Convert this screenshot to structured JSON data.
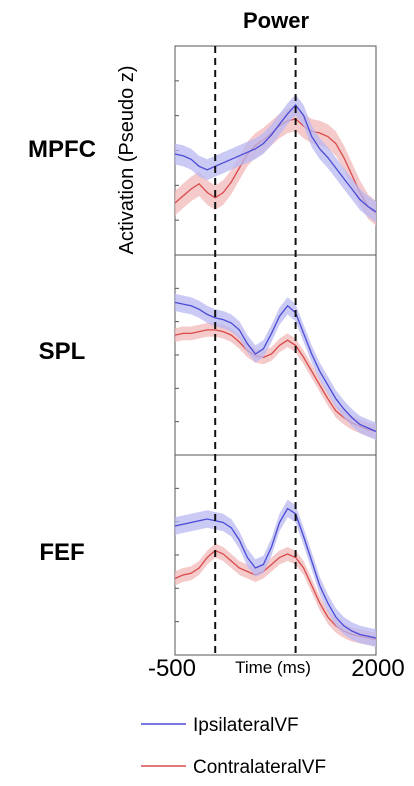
{
  "chart_data": {
    "type": "line",
    "title": "Power",
    "ylabel": "Activation (Pseudo z)",
    "xlabel": "Time (ms)",
    "x_tick_labels": [
      "-500",
      "2000"
    ],
    "xlim": [
      -500,
      2000
    ],
    "vlines": [
      0,
      1000
    ],
    "legend": {
      "placement": "bottom",
      "entries": [
        {
          "name": "IpsilateralVF",
          "color": "#4b4bd6"
        },
        {
          "name": "ContralateralVF",
          "color": "#d94b4b"
        }
      ]
    },
    "band_colors": {
      "IpsilateralVF": "#b8b8f2",
      "ContralateralVF": "#f2b8b8"
    },
    "x": [
      -500,
      -400,
      -300,
      -200,
      -100,
      0,
      100,
      200,
      300,
      400,
      500,
      600,
      700,
      800,
      900,
      1000,
      1100,
      1200,
      1300,
      1400,
      1500,
      1600,
      1700,
      1800,
      1900,
      2000
    ],
    "panels": [
      {
        "label": "MPFC",
        "ylim": [
          0,
          1
        ],
        "series": [
          {
            "name": "IpsilateralVF",
            "values": [
              0.52,
              0.51,
              0.49,
              0.45,
              0.43,
              0.45,
              0.47,
              0.49,
              0.51,
              0.53,
              0.55,
              0.58,
              0.63,
              0.69,
              0.75,
              0.8,
              0.74,
              0.62,
              0.55,
              0.5,
              0.44,
              0.38,
              0.32,
              0.26,
              0.22,
              0.19
            ],
            "err": 0.06
          },
          {
            "name": "ContralateralVF",
            "values": [
              0.24,
              0.28,
              0.32,
              0.35,
              0.3,
              0.27,
              0.3,
              0.36,
              0.44,
              0.52,
              0.57,
              0.6,
              0.64,
              0.68,
              0.71,
              0.72,
              0.68,
              0.65,
              0.64,
              0.62,
              0.58,
              0.5,
              0.4,
              0.3,
              0.22,
              0.18
            ],
            "err": 0.07
          }
        ]
      },
      {
        "label": "SPL",
        "ylim": [
          0,
          1
        ],
        "series": [
          {
            "name": "IpsilateralVF",
            "values": [
              0.8,
              0.79,
              0.78,
              0.76,
              0.73,
              0.71,
              0.7,
              0.68,
              0.64,
              0.56,
              0.5,
              0.53,
              0.62,
              0.72,
              0.78,
              0.74,
              0.62,
              0.5,
              0.4,
              0.32,
              0.24,
              0.18,
              0.13,
              0.09,
              0.07,
              0.05
            ],
            "err": 0.05
          },
          {
            "name": "ContralateralVF",
            "values": [
              0.61,
              0.62,
              0.62,
              0.63,
              0.64,
              0.64,
              0.63,
              0.61,
              0.57,
              0.52,
              0.49,
              0.48,
              0.5,
              0.55,
              0.58,
              0.55,
              0.48,
              0.4,
              0.32,
              0.24,
              0.17,
              0.13,
              0.1,
              0.08,
              0.06,
              0.05
            ],
            "err": 0.04
          }
        ]
      },
      {
        "label": "FEF",
        "ylim": [
          0,
          1
        ],
        "series": [
          {
            "name": "IpsilateralVF",
            "values": [
              0.68,
              0.69,
              0.7,
              0.71,
              0.72,
              0.71,
              0.7,
              0.67,
              0.6,
              0.5,
              0.44,
              0.46,
              0.56,
              0.7,
              0.78,
              0.75,
              0.62,
              0.48,
              0.34,
              0.24,
              0.16,
              0.11,
              0.08,
              0.06,
              0.05,
              0.04
            ],
            "err": 0.05
          },
          {
            "name": "ContralateralVF",
            "values": [
              0.38,
              0.4,
              0.41,
              0.44,
              0.5,
              0.54,
              0.52,
              0.48,
              0.44,
              0.42,
              0.4,
              0.42,
              0.46,
              0.5,
              0.52,
              0.5,
              0.44,
              0.34,
              0.24,
              0.16,
              0.11,
              0.08,
              0.06,
              0.05,
              0.04,
              0.03
            ],
            "err": 0.04
          }
        ]
      }
    ]
  }
}
